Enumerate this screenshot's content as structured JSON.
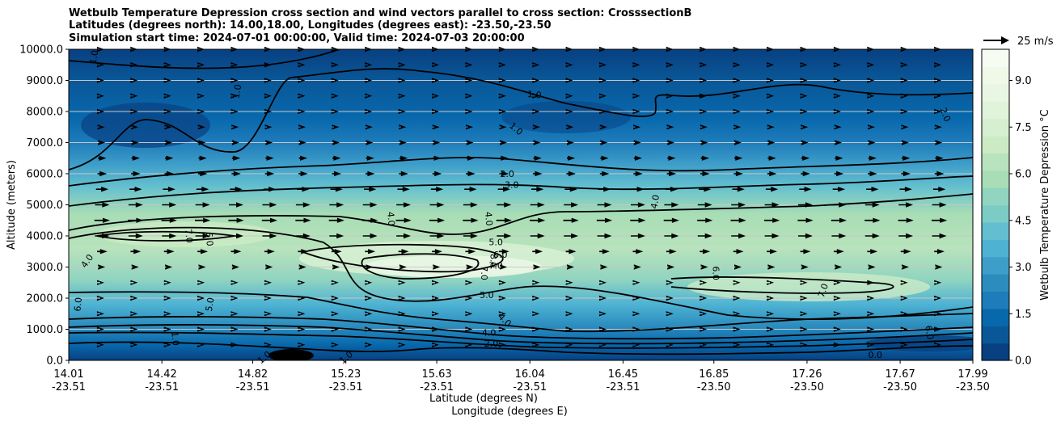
{
  "chart_data": {
    "type": "heatmap",
    "title_lines": [
      "Wetbulb Temperature Depression cross section and wind vectors parallel to cross section: CrosssectionB",
      "Latitudes (degrees north): 14.00,18.00, Longitudes (degrees east): -23.50,-23.50",
      "Simulation start time: 2024-07-01 00:00:00, Valid time: 2024-07-03 20:00:00"
    ],
    "ylabel": "Altitude (meters)",
    "xlabel_lines": [
      "Latitude (degrees N)",
      "Longitude (degrees E)"
    ],
    "ylim": [
      0,
      10000
    ],
    "xlim": [
      14.01,
      17.99
    ],
    "yticks": [
      {
        "value": 0,
        "label": "0.0"
      },
      {
        "value": 1000,
        "label": "1000.0"
      },
      {
        "value": 2000,
        "label": "2000.0"
      },
      {
        "value": 3000,
        "label": "3000.0"
      },
      {
        "value": 4000,
        "label": "4000.0"
      },
      {
        "value": 5000,
        "label": "5000.0"
      },
      {
        "value": 6000,
        "label": "6000.0"
      },
      {
        "value": 7000,
        "label": "7000.0"
      },
      {
        "value": 8000,
        "label": "8000.0"
      },
      {
        "value": 9000,
        "label": "9000.0"
      },
      {
        "value": 10000,
        "label": "10000.0"
      }
    ],
    "xticks": [
      {
        "value": 14.01,
        "lat": "14.01",
        "lon": "-23.51"
      },
      {
        "value": 14.42,
        "lat": "14.42",
        "lon": "-23.51"
      },
      {
        "value": 14.82,
        "lat": "14.82",
        "lon": "-23.51"
      },
      {
        "value": 15.23,
        "lat": "15.23",
        "lon": "-23.51"
      },
      {
        "value": 15.63,
        "lat": "15.63",
        "lon": "-23.51"
      },
      {
        "value": 16.04,
        "lat": "16.04",
        "lon": "-23.51"
      },
      {
        "value": 16.45,
        "lat": "16.45",
        "lon": "-23.51"
      },
      {
        "value": 16.85,
        "lat": "16.85",
        "lon": "-23.50"
      },
      {
        "value": 17.26,
        "lat": "17.26",
        "lon": "-23.50"
      },
      {
        "value": 17.67,
        "lat": "17.67",
        "lon": "-23.50"
      },
      {
        "value": 17.99,
        "lat": "17.99",
        "lon": "-23.50"
      }
    ],
    "grid": "horizontal",
    "colorbar": {
      "label": "Wetbulb Temperature Depression °C",
      "range": [
        0,
        10
      ],
      "ticks": [
        {
          "value": 0,
          "label": "0.0"
        },
        {
          "value": 1.5,
          "label": "1.5"
        },
        {
          "value": 3,
          "label": "3.0"
        },
        {
          "value": 4.5,
          "label": "4.5"
        },
        {
          "value": 6,
          "label": "6.0"
        },
        {
          "value": 7.5,
          "label": "7.5"
        },
        {
          "value": 9,
          "label": "9.0"
        }
      ],
      "colors": [
        "#084081",
        "#0a5797",
        "#0868ac",
        "#1f7cba",
        "#2b8cbe",
        "#3e9ec9",
        "#4eb3d3",
        "#63bfcf",
        "#7bccc4",
        "#91d4c0",
        "#a8ddb5",
        "#b8e3bc",
        "#ccebc5",
        "#d6efd1",
        "#e0f3db",
        "#e9f6e4",
        "#f0f9e8",
        "#f6fcf2"
      ]
    },
    "wind_key": {
      "label": "25 m/s",
      "speed": 25
    },
    "wind_vectors": [
      {
        "z": 10000,
        "speed": 2
      },
      {
        "z": 9500,
        "speed": 3
      },
      {
        "z": 9000,
        "speed": 3
      },
      {
        "z": 8500,
        "speed": 3
      },
      {
        "z": 8000,
        "speed": 4
      },
      {
        "z": 7500,
        "speed": 5
      },
      {
        "z": 7000,
        "speed": 6
      },
      {
        "z": 6500,
        "speed": 8
      },
      {
        "z": 6000,
        "speed": 9
      },
      {
        "z": 5500,
        "speed": 12
      },
      {
        "z": 5000,
        "speed": 14
      },
      {
        "z": 4500,
        "speed": 15
      },
      {
        "z": 4000,
        "speed": 14
      },
      {
        "z": 3500,
        "speed": 10
      },
      {
        "z": 3000,
        "speed": 6
      },
      {
        "z": 2500,
        "speed": 4
      },
      {
        "z": 2000,
        "speed": 3
      },
      {
        "z": 1500,
        "speed": 2
      },
      {
        "z": 1000,
        "speed": 2
      },
      {
        "z": 500,
        "speed": 1
      }
    ],
    "contour_labels": [
      {
        "x": 14.12,
        "z": 9750,
        "text": "1.0",
        "rot": -80
      },
      {
        "x": 14.75,
        "z": 8650,
        "text": "1.0",
        "rot": -80
      },
      {
        "x": 16.06,
        "z": 8550,
        "text": "1.0",
        "rot": 5
      },
      {
        "x": 15.98,
        "z": 7450,
        "text": "1.0",
        "rot": 40
      },
      {
        "x": 17.87,
        "z": 7900,
        "text": "2.0",
        "rot": 70
      },
      {
        "x": 15.94,
        "z": 6000,
        "text": "2.0",
        "rot": 0
      },
      {
        "x": 15.96,
        "z": 5650,
        "text": "3.0",
        "rot": 0
      },
      {
        "x": 16.59,
        "z": 5100,
        "text": "4.0",
        "rot": -80
      },
      {
        "x": 15.43,
        "z": 4550,
        "text": "4.0",
        "rot": 85
      },
      {
        "x": 15.86,
        "z": 4550,
        "text": "4.0",
        "rot": 85
      },
      {
        "x": 14.54,
        "z": 4000,
        "text": "7.0",
        "rot": 85
      },
      {
        "x": 14.63,
        "z": 3900,
        "text": "6.0",
        "rot": 85
      },
      {
        "x": 15.89,
        "z": 3800,
        "text": "5.0",
        "rot": 0
      },
      {
        "x": 15.91,
        "z": 3400,
        "text": "6.0",
        "rot": 0
      },
      {
        "x": 15.89,
        "z": 3050,
        "text": "7.0",
        "rot": 0
      },
      {
        "x": 15.84,
        "z": 2800,
        "text": "7.0",
        "rot": 90
      },
      {
        "x": 15.88,
        "z": 3200,
        "text": "8.0",
        "rot": 90
      },
      {
        "x": 16.86,
        "z": 2800,
        "text": "6.0",
        "rot": 90
      },
      {
        "x": 14.09,
        "z": 3200,
        "text": "4.0",
        "rot": -55
      },
      {
        "x": 14.05,
        "z": 1800,
        "text": "6.0",
        "rot": -85
      },
      {
        "x": 14.63,
        "z": 1800,
        "text": "5.0",
        "rot": -80
      },
      {
        "x": 15.85,
        "z": 2100,
        "text": "5.0",
        "rot": 0
      },
      {
        "x": 15.93,
        "z": 1300,
        "text": "4.0",
        "rot": 45
      },
      {
        "x": 15.86,
        "z": 900,
        "text": "4.0",
        "rot": 0
      },
      {
        "x": 15.87,
        "z": 550,
        "text": "2.0",
        "rot": 0
      },
      {
        "x": 17.33,
        "z": 2250,
        "text": "7.0",
        "rot": -70
      },
      {
        "x": 17.8,
        "z": 900,
        "text": "6.0",
        "rot": 80
      },
      {
        "x": 17.56,
        "z": 180,
        "text": "0.0",
        "rot": 0
      },
      {
        "x": 14.48,
        "z": 700,
        "text": "1.0",
        "rot": 85
      },
      {
        "x": 14.87,
        "z": 100,
        "text": "1.0",
        "rot": -40
      },
      {
        "x": 15.23,
        "z": 100,
        "text": "1.0",
        "rot": -40
      }
    ]
  }
}
